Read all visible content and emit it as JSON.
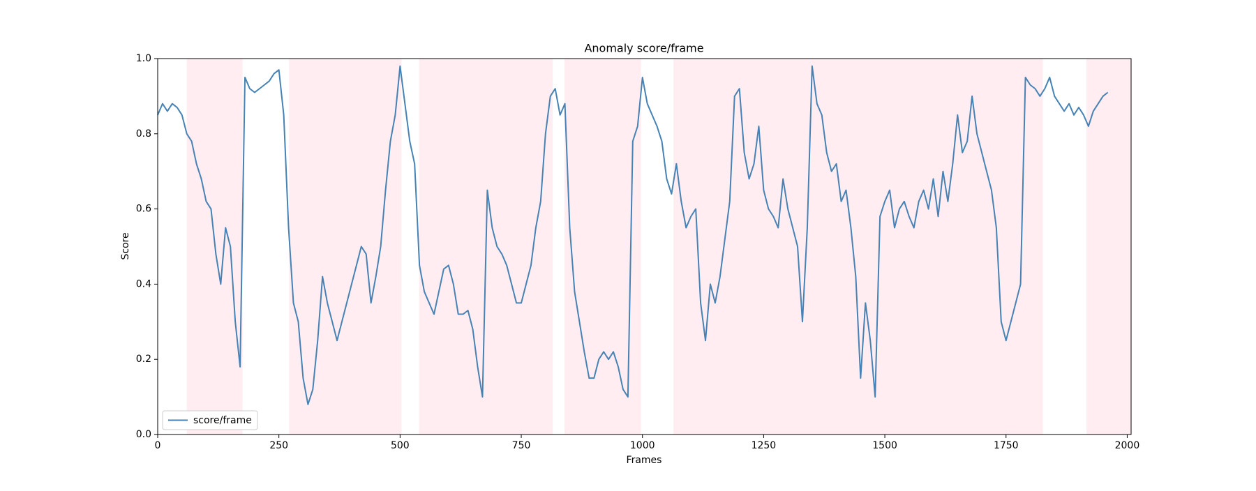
{
  "chart_data": {
    "type": "line",
    "title": "Anomaly score/frame",
    "xlabel": "Frames",
    "ylabel": "Score",
    "x": [
      0,
      10,
      20,
      30,
      40,
      50,
      60,
      70,
      80,
      90,
      100,
      110,
      120,
      130,
      140,
      150,
      160,
      170,
      180,
      190,
      200,
      210,
      220,
      230,
      240,
      250,
      260,
      270,
      280,
      290,
      300,
      310,
      320,
      330,
      340,
      350,
      360,
      370,
      380,
      390,
      400,
      410,
      420,
      430,
      440,
      450,
      460,
      470,
      480,
      490,
      500,
      510,
      520,
      530,
      540,
      550,
      560,
      570,
      580,
      590,
      600,
      610,
      620,
      630,
      640,
      650,
      660,
      670,
      680,
      690,
      700,
      710,
      720,
      730,
      740,
      750,
      760,
      770,
      780,
      790,
      800,
      810,
      820,
      830,
      840,
      850,
      860,
      870,
      880,
      890,
      900,
      910,
      920,
      930,
      940,
      950,
      960,
      970,
      980,
      990,
      1000,
      1010,
      1020,
      1030,
      1040,
      1050,
      1060,
      1070,
      1080,
      1090,
      1100,
      1110,
      1120,
      1130,
      1140,
      1150,
      1160,
      1170,
      1180,
      1190,
      1200,
      1210,
      1220,
      1230,
      1240,
      1250,
      1260,
      1270,
      1280,
      1290,
      1300,
      1310,
      1320,
      1330,
      1340,
      1350,
      1360,
      1370,
      1380,
      1390,
      1400,
      1410,
      1420,
      1430,
      1440,
      1450,
      1460,
      1470,
      1480,
      1490,
      1500,
      1510,
      1520,
      1530,
      1540,
      1550,
      1560,
      1570,
      1580,
      1590,
      1600,
      1610,
      1620,
      1630,
      1640,
      1650,
      1660,
      1670,
      1680,
      1690,
      1700,
      1710,
      1720,
      1730,
      1740,
      1750,
      1760,
      1770,
      1780,
      1790,
      1800,
      1810,
      1820,
      1830,
      1840,
      1850,
      1860,
      1870,
      1880,
      1890,
      1900,
      1910,
      1920,
      1930,
      1940,
      1950,
      1960
    ],
    "series": [
      {
        "name": "score/frame",
        "color": "#4682b4",
        "values": [
          0.85,
          0.88,
          0.86,
          0.88,
          0.87,
          0.85,
          0.8,
          0.78,
          0.72,
          0.68,
          0.62,
          0.6,
          0.48,
          0.4,
          0.55,
          0.5,
          0.3,
          0.18,
          0.95,
          0.92,
          0.91,
          0.92,
          0.93,
          0.94,
          0.96,
          0.97,
          0.85,
          0.55,
          0.35,
          0.3,
          0.15,
          0.08,
          0.12,
          0.25,
          0.42,
          0.35,
          0.3,
          0.25,
          0.3,
          0.35,
          0.4,
          0.45,
          0.5,
          0.48,
          0.35,
          0.42,
          0.5,
          0.65,
          0.78,
          0.85,
          0.98,
          0.88,
          0.78,
          0.72,
          0.45,
          0.38,
          0.35,
          0.32,
          0.38,
          0.44,
          0.45,
          0.4,
          0.32,
          0.32,
          0.33,
          0.28,
          0.18,
          0.1,
          0.65,
          0.55,
          0.5,
          0.48,
          0.45,
          0.4,
          0.35,
          0.35,
          0.4,
          0.45,
          0.55,
          0.62,
          0.8,
          0.9,
          0.92,
          0.85,
          0.88,
          0.55,
          0.38,
          0.3,
          0.22,
          0.15,
          0.15,
          0.2,
          0.22,
          0.2,
          0.22,
          0.18,
          0.12,
          0.1,
          0.78,
          0.82,
          0.95,
          0.88,
          0.85,
          0.82,
          0.78,
          0.68,
          0.64,
          0.72,
          0.62,
          0.55,
          0.58,
          0.6,
          0.35,
          0.25,
          0.4,
          0.35,
          0.42,
          0.52,
          0.62,
          0.9,
          0.92,
          0.75,
          0.68,
          0.72,
          0.82,
          0.65,
          0.6,
          0.58,
          0.55,
          0.68,
          0.6,
          0.55,
          0.5,
          0.3,
          0.55,
          0.98,
          0.88,
          0.85,
          0.75,
          0.7,
          0.72,
          0.62,
          0.65,
          0.55,
          0.42,
          0.15,
          0.35,
          0.25,
          0.1,
          0.58,
          0.62,
          0.65,
          0.55,
          0.6,
          0.62,
          0.58,
          0.55,
          0.62,
          0.65,
          0.6,
          0.68,
          0.58,
          0.7,
          0.62,
          0.72,
          0.85,
          0.75,
          0.78,
          0.9,
          0.8,
          0.75,
          0.7,
          0.65,
          0.55,
          0.3,
          0.25,
          0.3,
          0.35,
          0.4,
          0.95,
          0.93,
          0.92,
          0.9,
          0.92,
          0.95,
          0.9,
          0.88,
          0.86,
          0.88,
          0.85,
          0.87,
          0.85,
          0.82,
          0.86,
          0.88,
          0.9,
          0.91
        ]
      }
    ],
    "spans": [
      [
        60,
        175
      ],
      [
        271,
        503
      ],
      [
        539,
        815
      ],
      [
        839,
        997
      ],
      [
        1064,
        1826
      ],
      [
        1916,
        2008
      ]
    ],
    "span_color": "#ffedf2",
    "xlim": [
      0,
      2008
    ],
    "xticks": [
      0,
      250,
      500,
      750,
      1000,
      1250,
      1500,
      1750,
      2000
    ],
    "ylim": [
      0,
      1
    ],
    "yticks": [
      {
        "value": 0,
        "label": "0.0"
      },
      0.2,
      0.4,
      0.6,
      0.8,
      {
        "value": 1,
        "label": "1.0"
      }
    ],
    "legend": "lower left"
  }
}
